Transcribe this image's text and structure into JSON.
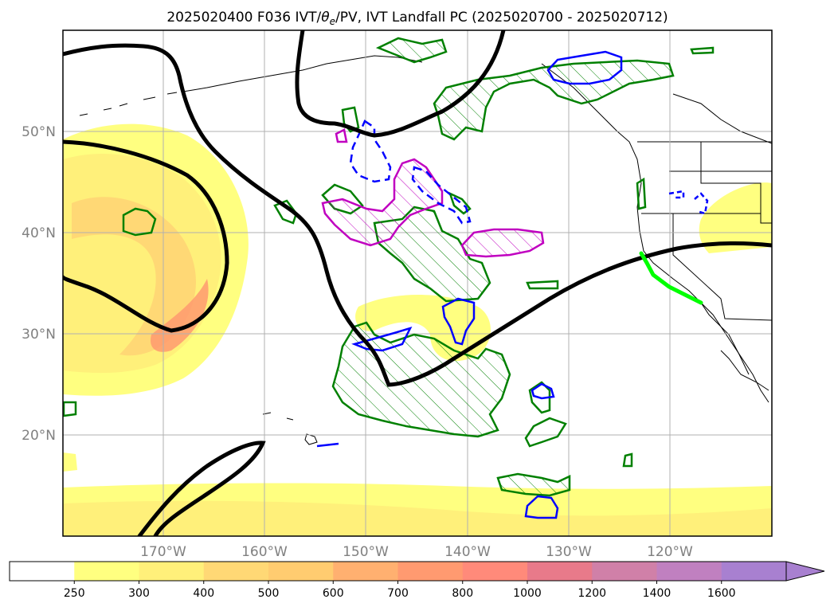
{
  "figure": {
    "title_text": "2025020400 F036 IVT/θe/PV, IVT Landfall PC (2025020700 - 2025020712)",
    "title_parts": {
      "before": "2025020400 F036 IVT/",
      "symbol": "θ",
      "subscript": "e",
      "after": "/PV, IVT Landfall PC (2025020700 - 2025020712)"
    }
  },
  "map": {
    "lon_labels": [
      "170°W",
      "160°W",
      "150°W",
      "140°W",
      "130°W",
      "120°W"
    ],
    "lat_labels": [
      "50°N",
      "40°N",
      "30°N",
      "20°N"
    ],
    "lon_range": [
      -180,
      -110
    ],
    "lat_range": [
      10,
      60
    ],
    "gridlines": true
  },
  "colorbar": {
    "tick_labels": [
      "250",
      "300",
      "400",
      "500",
      "600",
      "700",
      "800",
      "1000",
      "1200",
      "1400",
      "1600"
    ],
    "colors": [
      "#ffffff",
      "#ffff80",
      "#fff07a",
      "#ffd875",
      "#ffcc70",
      "#ffb070",
      "#ff9a70",
      "#ff8a7a",
      "#e87a8a",
      "#d080a8",
      "#c080c0",
      "#a880d0"
    ],
    "extend": "max"
  },
  "legend_colors": {
    "ivt_fill": "#ffff80",
    "heights_contour": "#000000",
    "theta_e_hatched": "#008000",
    "pv_positive": "#0000ff",
    "pv_secondary": "#c000c0",
    "landfall_line": "#00ff00"
  }
}
